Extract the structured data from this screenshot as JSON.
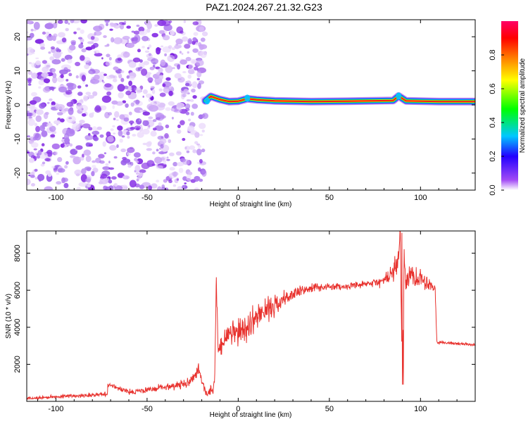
{
  "title": "PAZ1.2024.267.21.32.G23",
  "colors": {
    "snr_line": "#e8322e",
    "dots": "#8a2be2",
    "ridge_core": "#ff1a1a",
    "ridge_mid": "#22dd22",
    "ridge_outer": "#1a3cff",
    "axis": "#000000",
    "background": "#ffffff"
  },
  "chart_data": [
    {
      "type": "heatmap",
      "title": "PAZ1.2024.267.21.32.G23",
      "xlabel": "Height of straight line (km)",
      "ylabel": "Frequency (Hz)",
      "xlim": [
        -116,
        130
      ],
      "ylim": [
        -25,
        25
      ],
      "x_ticks": [
        -100,
        -50,
        0,
        50,
        100
      ],
      "y_ticks": [
        -20,
        -10,
        0,
        10,
        20
      ],
      "grid": false,
      "noise_region_x": [
        -116,
        -18
      ],
      "ridge": {
        "x_start": -18,
        "x_end": 130,
        "frequency": 1,
        "path": [
          {
            "x": -18,
            "y": 1.2
          },
          {
            "x": -15,
            "y": 2.5
          },
          {
            "x": -10,
            "y": 1.6
          },
          {
            "x": -5,
            "y": 1.0
          },
          {
            "x": 0,
            "y": 1.1
          },
          {
            "x": 5,
            "y": 1.8
          },
          {
            "x": 10,
            "y": 1.5
          },
          {
            "x": 20,
            "y": 1.2
          },
          {
            "x": 40,
            "y": 1.0
          },
          {
            "x": 60,
            "y": 1.1
          },
          {
            "x": 85,
            "y": 1.3
          },
          {
            "x": 88,
            "y": 2.6
          },
          {
            "x": 92,
            "y": 1.2
          },
          {
            "x": 110,
            "y": 1.0
          },
          {
            "x": 130,
            "y": 1.0
          }
        ]
      },
      "colorbar": {
        "label": "Normalized spectral amplitude",
        "range": [
          0,
          1
        ],
        "ticks": [
          "0.0",
          "0.2",
          "0.4",
          "0.6",
          "0.8"
        ],
        "colormap": [
          "#ffffff",
          "#8a2be2",
          "#0000ff",
          "#00c8ff",
          "#00ff00",
          "#ffff00",
          "#ff8000",
          "#ff0000",
          "#ff00aa"
        ]
      }
    },
    {
      "type": "line",
      "xlabel": "Height of straight line (km)",
      "ylabel": "SNR (10 * v/v)",
      "xlim": [
        -116,
        130
      ],
      "ylim": [
        0,
        9200
      ],
      "x_ticks": [
        -100,
        -50,
        0,
        50,
        100
      ],
      "y_ticks": [
        2000,
        4000,
        6000,
        8000
      ],
      "grid": false,
      "series": [
        {
          "x": [
            -116,
            -100,
            -80,
            -72,
            -71,
            -60,
            -50,
            -40,
            -30,
            -23,
            -22,
            -20,
            -17,
            -13,
            -12,
            -11,
            -10,
            -5,
            0,
            5,
            10,
            20,
            30,
            40,
            50,
            60,
            70,
            80,
            85,
            88,
            89,
            90,
            91,
            92,
            95,
            100,
            105,
            108,
            109,
            115,
            130
          ],
          "y": [
            150,
            250,
            350,
            400,
            900,
            500,
            600,
            800,
            900,
            1400,
            1900,
            900,
            400,
            700,
            6700,
            2500,
            3000,
            3600,
            3700,
            4000,
            4600,
            5200,
            5800,
            6100,
            6200,
            6200,
            6300,
            6500,
            7000,
            7500,
            9100,
            900,
            7800,
            6500,
            6800,
            6700,
            6300,
            6200,
            3200,
            3150,
            3050
          ],
          "fluct": [
            100,
            120,
            150,
            150,
            150,
            200,
            200,
            250,
            300,
            400,
            500,
            400,
            200,
            500,
            600,
            600,
            900,
            900,
            900,
            900,
            900,
            700,
            450,
            300,
            250,
            200,
            250,
            400,
            700,
            900,
            900,
            900,
            900,
            900,
            900,
            700,
            500,
            400,
            100,
            100,
            100
          ]
        }
      ]
    }
  ]
}
